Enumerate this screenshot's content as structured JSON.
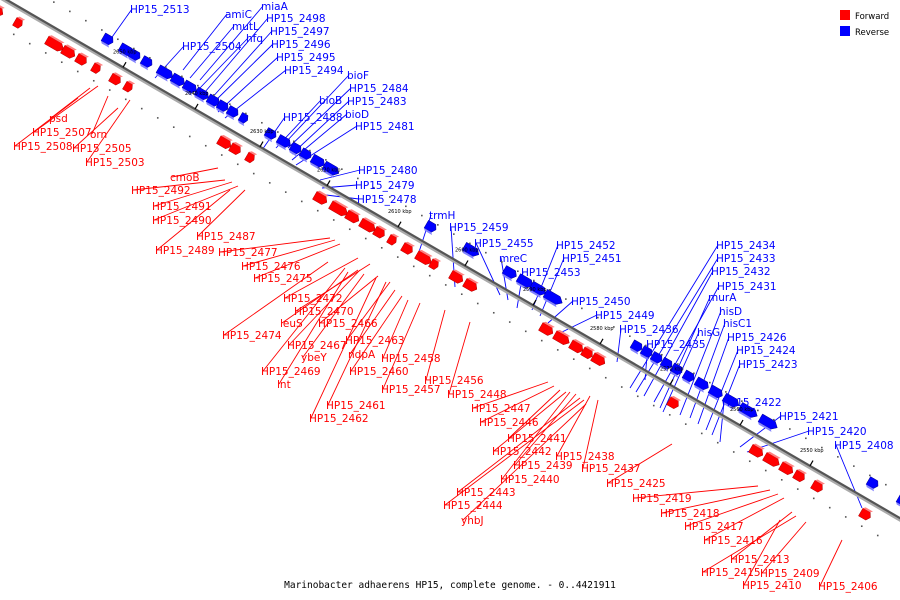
{
  "caption": "Marinobacter adhaerens HP15, complete genome. - 0..4421911",
  "legend": [
    {
      "label": "Forward",
      "color": "#ff0000"
    },
    {
      "label": "Reverse",
      "color": "#0000ff"
    }
  ],
  "colors": {
    "forward": "#ff0000",
    "reverse": "#0000ff",
    "axis": "#555555"
  },
  "ticks": [
    {
      "kbp": 2650,
      "label": "2650 kbp"
    },
    {
      "kbp": 2640,
      "label": "2640 kbp"
    },
    {
      "kbp": 2630,
      "label": "2630 kbp"
    },
    {
      "kbp": 2620,
      "label": "2620 kbp"
    },
    {
      "kbp": 2610,
      "label": "2610 kbp"
    },
    {
      "kbp": 2600,
      "label": "2600 kbp"
    },
    {
      "kbp": 2590,
      "label": "2590 kbp"
    },
    {
      "kbp": 2580,
      "label": "2580 kbp"
    },
    {
      "kbp": 2570,
      "label": "2570 kbp"
    },
    {
      "kbp": 2560,
      "label": "2560 kbp"
    },
    {
      "kbp": 2550,
      "label": "2550 kbp"
    }
  ],
  "reverse_genes": [
    "HP15_2513",
    "amiC",
    "miaA",
    "mutL",
    "HP15_2498",
    "hfq",
    "HP15_2497",
    "HP15_2504",
    "HP15_2496",
    "HP15_2495",
    "HP15_2494",
    "bioF",
    "HP15_2484",
    "bioB",
    "HP15_2483",
    "bioD",
    "HP15_2488",
    "HP15_2481",
    "HP15_2480",
    "HP15_2479",
    "HP15_2478",
    "trmH",
    "HP15_2459",
    "HP15_2455",
    "HP15_2452",
    "mreC",
    "HP15_2451",
    "HP15_2453",
    "HP15_2434",
    "HP15_2433",
    "HP15_2432",
    "HP15_2431",
    "murA",
    "HP15_2450",
    "HP15_2449",
    "hisD",
    "HP15_2436",
    "hisG",
    "hisC1",
    "HP15_2435",
    "HP15_2426",
    "HP15_2424",
    "HP15_2423",
    "HP15_2422",
    "HP15_2421",
    "HP15_2420",
    "HP15_2408"
  ],
  "forward_genes": [
    "psd",
    "HP15_2507",
    "orn",
    "HP15_2508",
    "HP15_2505",
    "HP15_2503",
    "cmoB",
    "HP15_2492",
    "HP15_2491",
    "HP15_2490",
    "HP15_2487",
    "HP15_2489",
    "HP15_2477",
    "HP15_2476",
    "HP15_2475",
    "HP15_2472",
    "HP15_2470",
    "leuS",
    "HP15_2466",
    "HP15_2474",
    "HP15_2463",
    "HP15_2467",
    "ndpA",
    "ybeY",
    "HP15_2458",
    "HP15_2469",
    "HP15_2460",
    "lnt",
    "HP15_2456",
    "HP15_2457",
    "HP15_2448",
    "HP15_2461",
    "HP15_2462",
    "HP15_2447",
    "HP15_2446",
    "HP15_2441",
    "HP15_2442",
    "HP15_2438",
    "HP15_2439",
    "HP15_2437",
    "HP15_2440",
    "HP15_2425",
    "HP15_2443",
    "HP15_2419",
    "HP15_2444",
    "HP15_2418",
    "yhbJ",
    "HP15_2417",
    "HP15_2416",
    "HP15_2413",
    "HP15_2415",
    "HP15_2409",
    "HP15_2410",
    "HP15_2406"
  ]
}
